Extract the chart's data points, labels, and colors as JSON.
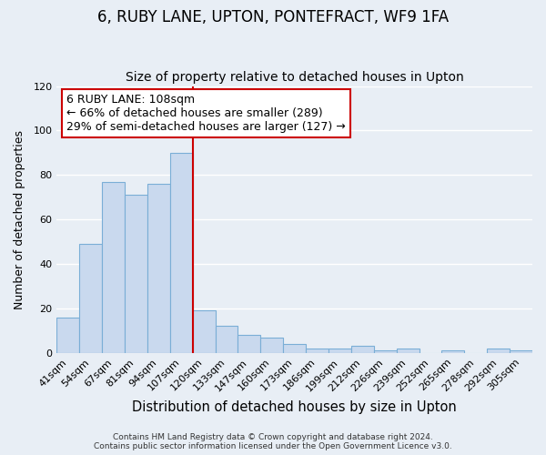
{
  "title": "6, RUBY LANE, UPTON, PONTEFRACT, WF9 1FA",
  "subtitle": "Size of property relative to detached houses in Upton",
  "xlabel": "Distribution of detached houses by size in Upton",
  "ylabel": "Number of detached properties",
  "bar_color": "#c9d9ee",
  "bar_edge_color": "#7aaed6",
  "background_color": "#e8eef5",
  "plot_bg_color": "#e8eef5",
  "grid_color": "#ffffff",
  "categories": [
    "41sqm",
    "54sqm",
    "67sqm",
    "81sqm",
    "94sqm",
    "107sqm",
    "120sqm",
    "133sqm",
    "147sqm",
    "160sqm",
    "173sqm",
    "186sqm",
    "199sqm",
    "212sqm",
    "226sqm",
    "239sqm",
    "252sqm",
    "265sqm",
    "278sqm",
    "292sqm",
    "305sqm"
  ],
  "values": [
    16,
    49,
    77,
    71,
    76,
    90,
    19,
    12,
    8,
    7,
    4,
    2,
    2,
    3,
    1,
    2,
    0,
    1,
    0,
    2,
    1
  ],
  "red_line_index": 6,
  "red_line_color": "#cc0000",
  "ylim": [
    0,
    120
  ],
  "yticks": [
    0,
    20,
    40,
    60,
    80,
    100,
    120
  ],
  "annotation_box_text": "6 RUBY LANE: 108sqm\n← 66% of detached houses are smaller (289)\n29% of semi-detached houses are larger (127) →",
  "annotation_fontsize": 9,
  "title_fontsize": 12,
  "subtitle_fontsize": 10,
  "xlabel_fontsize": 10.5,
  "ylabel_fontsize": 9,
  "tick_fontsize": 8,
  "footer_line1": "Contains HM Land Registry data © Crown copyright and database right 2024.",
  "footer_line2": "Contains public sector information licensed under the Open Government Licence v3.0."
}
